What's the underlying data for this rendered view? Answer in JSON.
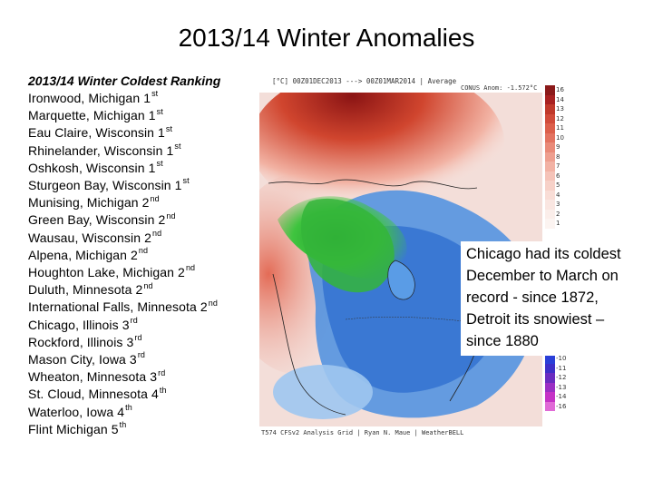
{
  "title": "2013/14 Winter Anomalies",
  "ranking": {
    "heading": "2013/14 Winter Coldest Ranking",
    "items": [
      {
        "place": "Ironwood, Michigan 1",
        "ordinal": "st"
      },
      {
        "place": "Marquette, Michigan 1",
        "ordinal": "st"
      },
      {
        "place": "Eau Claire, Wisconsin 1",
        "ordinal": "st"
      },
      {
        "place": "Rhinelander, Wisconsin 1",
        "ordinal": "st"
      },
      {
        "place": "Oshkosh, Wisconsin 1",
        "ordinal": "st"
      },
      {
        "place": "Sturgeon Bay, Wisconsin 1",
        "ordinal": "st"
      },
      {
        "place": "Munising, Michigan 2",
        "ordinal": "nd"
      },
      {
        "place": "Green Bay, Wisconsin 2",
        "ordinal": "nd"
      },
      {
        "place": "Wausau, Wisconsin 2",
        "ordinal": "nd"
      },
      {
        "place": "Alpena, Michigan 2",
        "ordinal": "nd"
      },
      {
        "place": "Houghton Lake, Michigan 2",
        "ordinal": "nd"
      },
      {
        "place": "Duluth, Minnesota 2",
        "ordinal": "nd"
      },
      {
        "place": "International Falls, Minnesota 2",
        "ordinal": "nd"
      },
      {
        "place": "Chicago, Illinois 3",
        "ordinal": "rd"
      },
      {
        "place": "Rockford, Illinois 3",
        "ordinal": "rd"
      },
      {
        "place": "Mason City, Iowa 3",
        "ordinal": "rd"
      },
      {
        "place": "Wheaton, Minnesota 3",
        "ordinal": "rd"
      },
      {
        "place": "St. Cloud, Minnesota 4",
        "ordinal": "th"
      },
      {
        "place": "Waterloo, Iowa 4",
        "ordinal": "th"
      },
      {
        "place": "Flint Michigan 5",
        "ordinal": "th"
      }
    ]
  },
  "map": {
    "header_left": "[°C]  00Z01DEC2013  --->  00Z01MAR2014  |  Average",
    "header_right": "CONUS Anom: -1.572°C",
    "footer": "T574 CFSv2 Analysis Grid | Ryan N. Maue | WeatherBELL",
    "colorbar_labels_warm": [
      "16",
      "14",
      "13",
      "12",
      "11",
      "10",
      "9",
      "8",
      "7",
      "6",
      "5",
      "4",
      "3",
      "2",
      "1"
    ],
    "colorbar_labels_cold": [
      "-10",
      "-11",
      "-12",
      "-13",
      "-14",
      "-16"
    ]
  },
  "callout": {
    "text": "Chicago had its coldest December to March on record - since 1872, Detroit its snowiest – since 1880"
  }
}
